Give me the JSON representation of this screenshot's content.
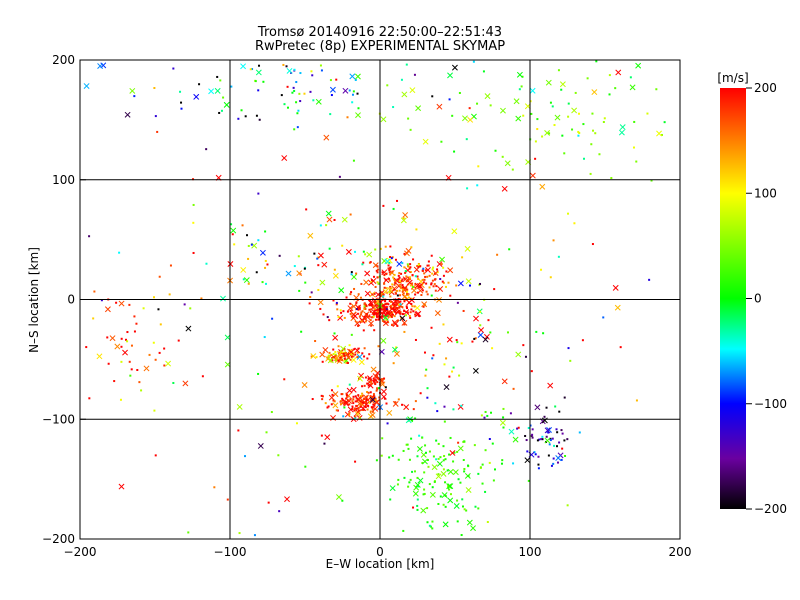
{
  "chart_data": {
    "type": "scatter",
    "title": "Tromsø 20140916 22:50:00–22:51:43",
    "subtitle": "RwPretec (8p) EXPERIMENTAL SKYMAP",
    "xlabel": "E–W location [km]",
    "ylabel": "N–S location [km]",
    "xlim": [
      -200,
      200
    ],
    "ylim": [
      -200,
      200
    ],
    "xticks": [
      -200,
      -100,
      0,
      100,
      200
    ],
    "yticks": [
      -200,
      -100,
      0,
      100,
      200
    ],
    "grid": true,
    "colorbar": {
      "label": "[m/s]",
      "min": -200,
      "max": 200,
      "ticks": [
        -200,
        -100,
        0,
        100,
        200
      ]
    },
    "point_clusters": [
      {
        "center": [
          0,
          -8
        ],
        "spread": [
          12,
          7
        ],
        "count": 260,
        "velocity_mean": 190,
        "velocity_spread": 25
      },
      {
        "center": [
          18,
          15
        ],
        "spread": [
          14,
          10
        ],
        "count": 220,
        "velocity_mean": 175,
        "velocity_spread": 45
      },
      {
        "center": [
          -25,
          -47
        ],
        "spread": [
          7,
          3
        ],
        "count": 90,
        "velocity_mean": 170,
        "velocity_spread": 50
      },
      {
        "center": [
          -5,
          -68
        ],
        "spread": [
          4,
          3
        ],
        "count": 40,
        "velocity_mean": 195,
        "velocity_spread": 15
      },
      {
        "center": [
          -15,
          -85
        ],
        "spread": [
          12,
          6
        ],
        "count": 150,
        "velocity_mean": 185,
        "velocity_spread": 30
      },
      {
        "center": [
          40,
          -150
        ],
        "spread": [
          20,
          25
        ],
        "count": 150,
        "velocity_mean": 20,
        "velocity_spread": 20
      },
      {
        "center": [
          110,
          -120
        ],
        "spread": [
          10,
          12
        ],
        "count": 60,
        "velocity_mean": -130,
        "velocity_spread": 60
      },
      {
        "center": [
          -60,
          180
        ],
        "spread": [
          60,
          22
        ],
        "count": 110,
        "velocity_mean": -60,
        "velocity_spread": 110
      },
      {
        "center": [
          120,
          160
        ],
        "spread": [
          55,
          30
        ],
        "count": 110,
        "velocity_mean": 40,
        "velocity_spread": 40
      },
      {
        "center": [
          -165,
          -30
        ],
        "spread": [
          20,
          25
        ],
        "count": 55,
        "velocity_mean": 170,
        "velocity_spread": 60
      },
      {
        "center": [
          -40,
          30
        ],
        "spread": [
          40,
          25
        ],
        "count": 90,
        "velocity_mean": 80,
        "velocity_spread": 160
      },
      {
        "center": [
          40,
          -50
        ],
        "spread": [
          45,
          45
        ],
        "count": 120,
        "velocity_mean": 80,
        "velocity_spread": 150
      },
      {
        "center": [
          0,
          0
        ],
        "spread": [
          120,
          110
        ],
        "count": 160,
        "velocity_mean": 60,
        "velocity_spread": 170
      }
    ]
  }
}
